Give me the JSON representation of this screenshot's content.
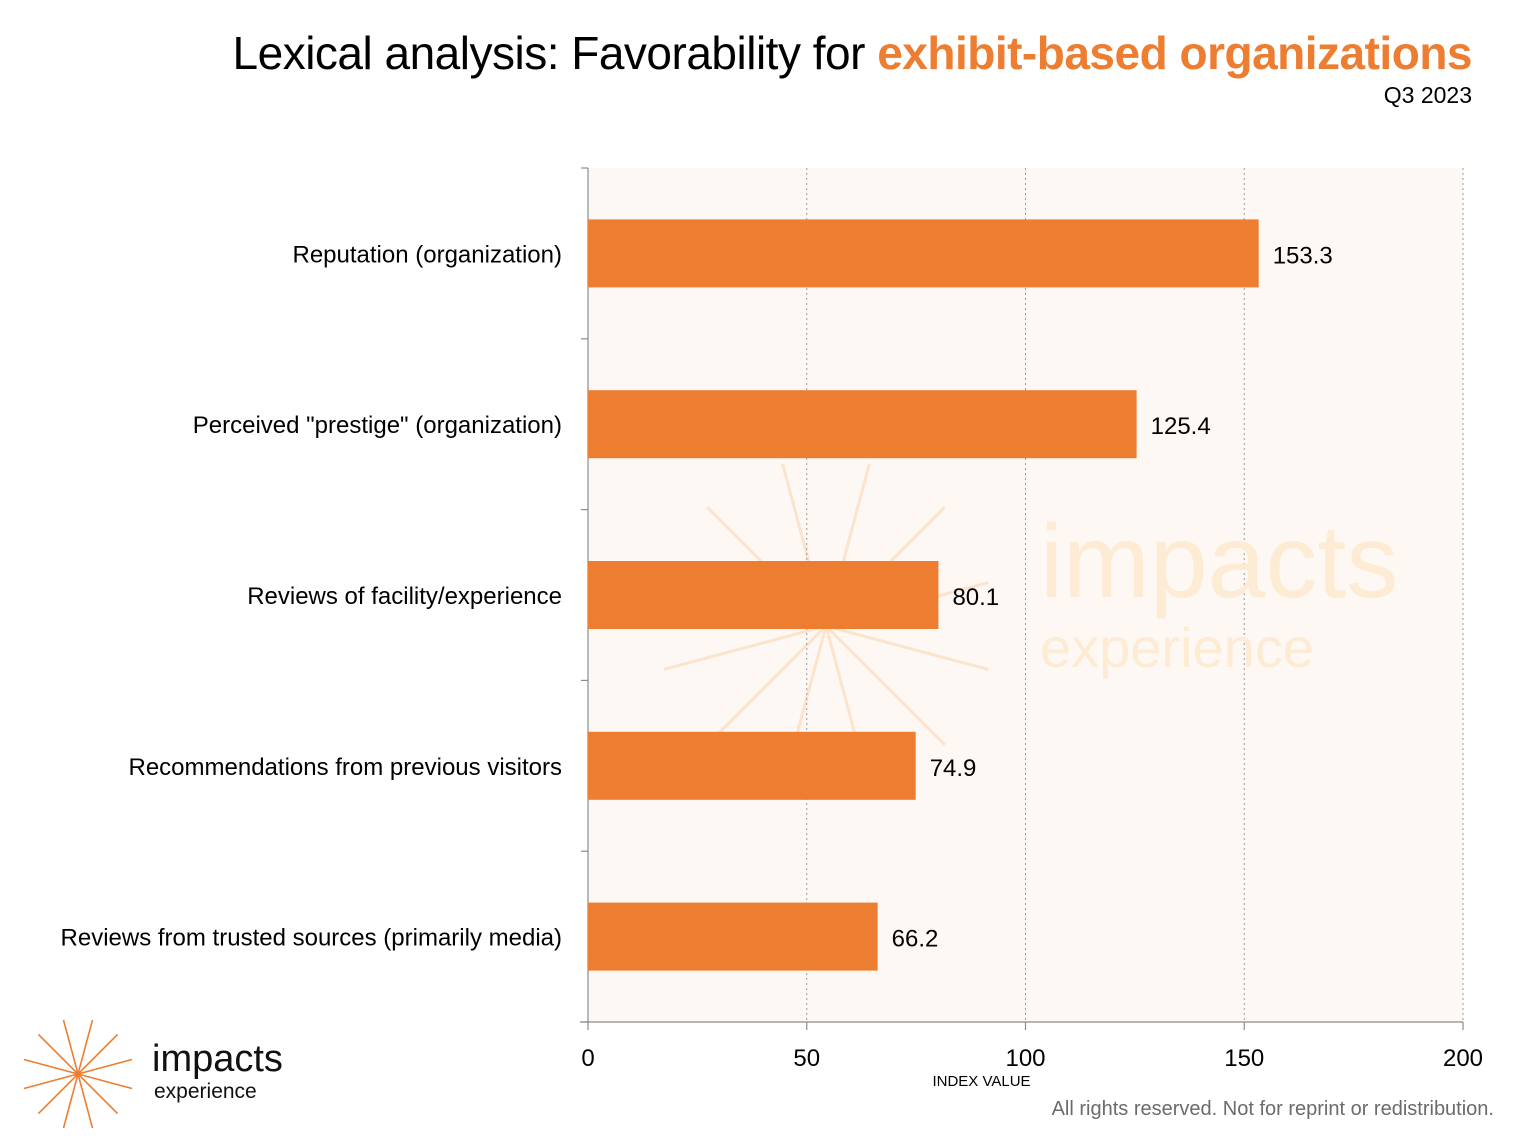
{
  "header": {
    "title_prefix": "Lexical analysis: Favorability for ",
    "title_highlight": "exhibit-based organizations",
    "subtitle": "Q3 2023"
  },
  "colors": {
    "bar": "#ED7D31",
    "plot_background": "#FDF8F4",
    "highlight": "#ED7D31"
  },
  "chart_data": {
    "type": "bar",
    "orientation": "horizontal",
    "title": "",
    "categories": [
      "Reputation (organization)",
      "Perceived \"prestige\" (organization)",
      "Reviews of facility/experience",
      "Recommendations from previous visitors",
      "Reviews from trusted sources (primarily media)"
    ],
    "values": [
      153.3,
      125.4,
      80.1,
      74.9,
      66.2
    ],
    "value_labels": [
      "153.3",
      "125.4",
      "80.1",
      "74.9",
      "66.2"
    ],
    "xlabel": "INDEX VALUE",
    "ylabel": "",
    "xlim": [
      0,
      200
    ],
    "xticks": [
      0,
      50,
      100,
      150,
      200
    ],
    "xtick_labels": [
      "0",
      "50",
      "100",
      "150",
      "200"
    ],
    "grid": "vertical dotted",
    "legend": "none"
  },
  "watermark": {
    "word": "impacts",
    "sub": "experience"
  },
  "logo": {
    "word": "impacts",
    "sub": "experience"
  },
  "footer": {
    "text": "All rights reserved. Not for reprint or redistribution."
  }
}
